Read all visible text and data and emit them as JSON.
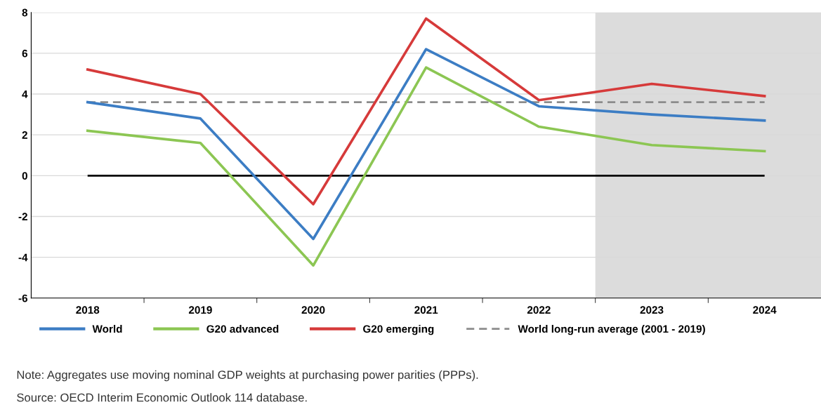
{
  "chart_data": {
    "type": "line",
    "categories": [
      "2018",
      "2019",
      "2020",
      "2021",
      "2022",
      "2023",
      "2024"
    ],
    "series": [
      {
        "name": "World",
        "color": "#3c7dc4",
        "values": [
          3.6,
          2.8,
          -3.1,
          6.2,
          3.4,
          3.0,
          2.7
        ]
      },
      {
        "name": "G20 advanced",
        "color": "#8cc653",
        "values": [
          2.2,
          1.6,
          -4.4,
          5.3,
          2.4,
          1.5,
          1.2
        ]
      },
      {
        "name": "G20 emerging",
        "color": "#d63a3a",
        "values": [
          5.2,
          4.0,
          -1.4,
          7.7,
          3.7,
          4.5,
          3.9
        ]
      }
    ],
    "ref_lines": [
      {
        "axis": "y",
        "value": 3.6,
        "label": "World long-run average (2001 - 2019)",
        "color": "#8c8c8c",
        "line_style": "dashed"
      },
      {
        "axis": "y",
        "value": 0,
        "color": "#000000",
        "line_style": "solid"
      }
    ],
    "bands": [
      {
        "axis": "x",
        "from": "2023",
        "to": "2024",
        "color": "#dcdcdc"
      }
    ],
    "ylim": [
      -6,
      8
    ],
    "yticks": [
      -6,
      -4,
      -2,
      0,
      2,
      4,
      6,
      8
    ],
    "grid": "y",
    "legend": "bottom",
    "marker": "none",
    "line_style": "solid",
    "annotations": [
      "Note: Aggregates use moving nominal GDP weights at purchasing power parities (PPPs).",
      "Source: OECD Interim Economic Outlook 114 database."
    ]
  }
}
